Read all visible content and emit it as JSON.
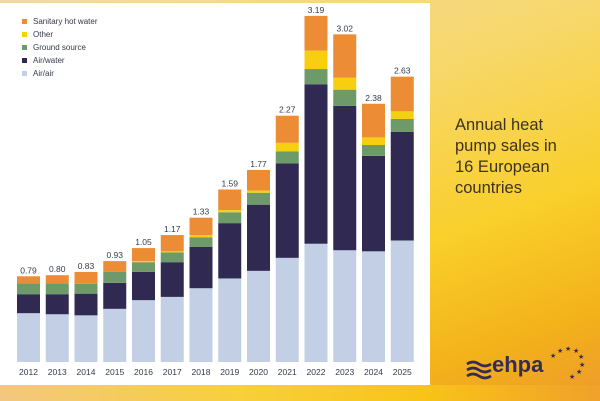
{
  "caption": {
    "lines": [
      "Annual heat",
      "pump sales in",
      "16 European",
      "countries"
    ]
  },
  "logo": {
    "text": "ehpa",
    "icon": "waves-icon",
    "stars_icon": "eu-stars-icon"
  },
  "colors": {
    "air_air": "#c2cfe5",
    "air_water": "#302952",
    "ground_source": "#6e9a6a",
    "other": "#f7cf10",
    "sanitary_hot_water": "#ec8d35"
  },
  "chart_data": {
    "type": "bar",
    "stacked": true,
    "title": "Annual heat pump sales in 16 European countries",
    "xlabel": "",
    "ylabel": "",
    "unit": "million units",
    "ylim": [
      0,
      3.3
    ],
    "grid": false,
    "legend_position": "top-left",
    "categories": [
      "2012",
      "2013",
      "2014",
      "2015",
      "2016",
      "2017",
      "2018",
      "2019",
      "2020",
      "2021",
      "2022",
      "2023",
      "2024",
      "2025"
    ],
    "totals": [
      0.79,
      0.8,
      0.83,
      0.93,
      1.05,
      1.17,
      1.33,
      1.59,
      1.77,
      2.27,
      3.19,
      3.02,
      2.38,
      2.63
    ],
    "total_labels": [
      "0.79",
      "0.80",
      "0.83",
      "0.93",
      "1.05",
      "1.17",
      "1.33",
      "1.59",
      "1.77",
      "2.27",
      "3.19",
      "3.02",
      "2.38",
      "2.63"
    ],
    "legend": [
      "Sanitary hot water",
      "Other",
      "Ground source",
      "Air/water",
      "Air/air"
    ],
    "series": [
      {
        "name": "Air/air",
        "key": "air_air",
        "values": [
          0.45,
          0.44,
          0.43,
          0.49,
          0.57,
          0.6,
          0.68,
          0.77,
          0.84,
          0.96,
          1.09,
          1.03,
          1.02,
          1.12
        ]
      },
      {
        "name": "Air/water",
        "key": "air_water",
        "values": [
          0.175,
          0.185,
          0.2,
          0.24,
          0.26,
          0.32,
          0.38,
          0.51,
          0.61,
          0.87,
          1.47,
          1.33,
          0.88,
          1.0
        ]
      },
      {
        "name": "Ground source",
        "key": "ground_source",
        "values": [
          0.1,
          0.1,
          0.09,
          0.1,
          0.09,
          0.09,
          0.09,
          0.1,
          0.11,
          0.11,
          0.14,
          0.15,
          0.1,
          0.12
        ]
      },
      {
        "name": "Other",
        "key": "other",
        "values": [
          0,
          0,
          0,
          0,
          0.01,
          0.01,
          0.02,
          0.02,
          0.02,
          0.08,
          0.17,
          0.11,
          0.07,
          0.07
        ]
      },
      {
        "name": "Sanitary hot water",
        "key": "sanitary_hot_water",
        "values": [
          0.065,
          0.075,
          0.11,
          0.1,
          0.12,
          0.15,
          0.16,
          0.19,
          0.19,
          0.25,
          0.32,
          0.4,
          0.31,
          0.32
        ]
      }
    ]
  }
}
